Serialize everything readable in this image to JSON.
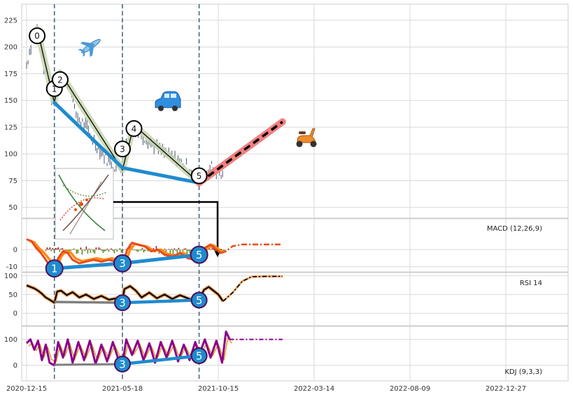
{
  "chart_data": {
    "type": "line",
    "x_ticks": [
      "2020-12-15",
      "2021-05-18",
      "2021-10-15",
      "2022-03-14",
      "2022-08-09",
      "2022-12-27"
    ],
    "price_panel": {
      "yticks": [
        50,
        75,
        100,
        125,
        150,
        175,
        200,
        225
      ],
      "ylim": [
        40,
        240
      ],
      "price_series": [
        {
          "t": 0.0,
          "v": 183
        },
        {
          "t": 0.03,
          "v": 196
        },
        {
          "t": 0.06,
          "v": 207
        },
        {
          "t": 0.09,
          "v": 213
        },
        {
          "t": 0.11,
          "v": 218
        },
        {
          "t": 0.14,
          "v": 200
        },
        {
          "t": 0.18,
          "v": 181
        },
        {
          "t": 0.22,
          "v": 163
        },
        {
          "t": 0.26,
          "v": 154
        },
        {
          "t": 0.29,
          "v": 150
        },
        {
          "t": 0.32,
          "v": 168
        },
        {
          "t": 0.35,
          "v": 177
        },
        {
          "t": 0.39,
          "v": 172
        },
        {
          "t": 0.43,
          "v": 166
        },
        {
          "t": 0.47,
          "v": 160
        },
        {
          "t": 0.5,
          "v": 140
        },
        {
          "t": 0.55,
          "v": 132
        },
        {
          "t": 0.6,
          "v": 128
        },
        {
          "t": 0.66,
          "v": 118
        },
        {
          "t": 0.72,
          "v": 110
        },
        {
          "t": 0.78,
          "v": 102
        },
        {
          "t": 0.84,
          "v": 95
        },
        {
          "t": 0.9,
          "v": 90
        },
        {
          "t": 0.95,
          "v": 86
        },
        {
          "t": 1.0,
          "v": 88
        },
        {
          "t": 1.04,
          "v": 110
        },
        {
          "t": 1.08,
          "v": 124
        },
        {
          "t": 1.12,
          "v": 126
        },
        {
          "t": 1.18,
          "v": 120
        },
        {
          "t": 1.25,
          "v": 114
        },
        {
          "t": 1.33,
          "v": 108
        },
        {
          "t": 1.42,
          "v": 102
        },
        {
          "t": 1.5,
          "v": 97
        },
        {
          "t": 1.58,
          "v": 94
        },
        {
          "t": 1.65,
          "v": 90
        },
        {
          "t": 1.72,
          "v": 84
        },
        {
          "t": 1.77,
          "v": 78
        },
        {
          "t": 1.8,
          "v": 74
        },
        {
          "t": 1.84,
          "v": 80
        },
        {
          "t": 1.88,
          "v": 85
        },
        {
          "t": 1.93,
          "v": 88
        },
        {
          "t": 1.98,
          "v": 84
        },
        {
          "t": 2.03,
          "v": 80
        },
        {
          "t": 2.06,
          "v": 78
        }
      ],
      "wave_points": [
        {
          "label": "0",
          "t": 0.11,
          "v": 217
        },
        {
          "label": "1",
          "t": 0.29,
          "v": 148
        },
        {
          "label": "2",
          "t": 0.35,
          "v": 176
        },
        {
          "label": "3",
          "t": 1.0,
          "v": 85
        },
        {
          "label": "4",
          "t": 1.12,
          "v": 127
        },
        {
          "label": "5",
          "t": 1.8,
          "v": 73
        }
      ],
      "trend_line": [
        {
          "t": 0.29,
          "v": 148
        },
        {
          "t": 1.0,
          "v": 87
        },
        {
          "t": 1.8,
          "v": 73
        }
      ],
      "forecast": [
        {
          "t": 1.8,
          "v": 73
        },
        {
          "t": 2.67,
          "v": 130
        }
      ],
      "vlines_t": [
        0.29,
        1.0,
        1.8
      ]
    },
    "macd_panel": {
      "label": "MACD (12,26,9)",
      "yticks": [
        -10,
        0
      ],
      "ylim": [
        -13,
        18
      ],
      "macd_series": [
        {
          "t": 0.0,
          "v": 6
        },
        {
          "t": 0.05,
          "v": 5
        },
        {
          "t": 0.1,
          "v": 1
        },
        {
          "t": 0.15,
          "v": -2
        },
        {
          "t": 0.2,
          "v": -6
        },
        {
          "t": 0.25,
          "v": -10
        },
        {
          "t": 0.29,
          "v": -12
        },
        {
          "t": 0.33,
          "v": -5
        },
        {
          "t": 0.38,
          "v": -1
        },
        {
          "t": 0.43,
          "v": -2
        },
        {
          "t": 0.48,
          "v": -6
        },
        {
          "t": 0.55,
          "v": -8
        },
        {
          "t": 0.62,
          "v": -7
        },
        {
          "t": 0.7,
          "v": -6
        },
        {
          "t": 0.78,
          "v": -7
        },
        {
          "t": 0.86,
          "v": -6
        },
        {
          "t": 0.93,
          "v": -7
        },
        {
          "t": 1.0,
          "v": -9
        },
        {
          "t": 1.05,
          "v": 0
        },
        {
          "t": 1.1,
          "v": 4
        },
        {
          "t": 1.16,
          "v": 3
        },
        {
          "t": 1.23,
          "v": 2
        },
        {
          "t": 1.3,
          "v": -1
        },
        {
          "t": 1.37,
          "v": 0
        },
        {
          "t": 1.44,
          "v": -3
        },
        {
          "t": 1.52,
          "v": -4
        },
        {
          "t": 1.6,
          "v": -2
        },
        {
          "t": 1.68,
          "v": -5
        },
        {
          "t": 1.75,
          "v": -6
        },
        {
          "t": 1.8,
          "v": -5
        },
        {
          "t": 1.86,
          "v": 1
        },
        {
          "t": 1.92,
          "v": 3
        },
        {
          "t": 1.98,
          "v": 0
        },
        {
          "t": 2.03,
          "v": -2
        },
        {
          "t": 2.08,
          "v": -1
        },
        {
          "t": 2.15,
          "v": 2
        },
        {
          "t": 2.25,
          "v": 3
        },
        {
          "t": 2.4,
          "v": 3
        },
        {
          "t": 2.67,
          "v": 3
        }
      ],
      "divergence": [
        {
          "label": "1",
          "t": 0.29,
          "v": -11
        },
        {
          "label": "3",
          "t": 1.0,
          "v": -8
        },
        {
          "label": "5",
          "t": 1.8,
          "v": -3
        }
      ]
    },
    "rsi_panel": {
      "label": "RSI 14",
      "yticks": [
        0,
        50,
        100
      ],
      "ylim": [
        -33,
        108
      ],
      "rsi_series": [
        {
          "t": 0.0,
          "v": 74
        },
        {
          "t": 0.04,
          "v": 70
        },
        {
          "t": 0.08,
          "v": 66
        },
        {
          "t": 0.12,
          "v": 60
        },
        {
          "t": 0.16,
          "v": 52
        },
        {
          "t": 0.2,
          "v": 42
        },
        {
          "t": 0.24,
          "v": 36
        },
        {
          "t": 0.29,
          "v": 28
        },
        {
          "t": 0.32,
          "v": 58
        },
        {
          "t": 0.36,
          "v": 60
        },
        {
          "t": 0.42,
          "v": 48
        },
        {
          "t": 0.48,
          "v": 56
        },
        {
          "t": 0.55,
          "v": 42
        },
        {
          "t": 0.62,
          "v": 50
        },
        {
          "t": 0.7,
          "v": 38
        },
        {
          "t": 0.78,
          "v": 46
        },
        {
          "t": 0.86,
          "v": 36
        },
        {
          "t": 0.94,
          "v": 40
        },
        {
          "t": 0.98,
          "v": 30
        },
        {
          "t": 1.0,
          "v": 32
        },
        {
          "t": 1.02,
          "v": 64
        },
        {
          "t": 1.08,
          "v": 72
        },
        {
          "t": 1.14,
          "v": 60
        },
        {
          "t": 1.2,
          "v": 42
        },
        {
          "t": 1.28,
          "v": 55
        },
        {
          "t": 1.36,
          "v": 40
        },
        {
          "t": 1.44,
          "v": 50
        },
        {
          "t": 1.52,
          "v": 38
        },
        {
          "t": 1.6,
          "v": 48
        },
        {
          "t": 1.68,
          "v": 40
        },
        {
          "t": 1.75,
          "v": 34
        },
        {
          "t": 1.8,
          "v": 36
        },
        {
          "t": 1.85,
          "v": 62
        },
        {
          "t": 1.9,
          "v": 70
        },
        {
          "t": 1.95,
          "v": 60
        },
        {
          "t": 2.0,
          "v": 50
        },
        {
          "t": 2.05,
          "v": 32
        },
        {
          "t": 2.15,
          "v": 55
        },
        {
          "t": 2.25,
          "v": 85
        },
        {
          "t": 2.35,
          "v": 97
        },
        {
          "t": 2.5,
          "v": 98
        },
        {
          "t": 2.67,
          "v": 98
        }
      ],
      "divergence": [
        {
          "label": "",
          "t": 0.29,
          "v": 30
        },
        {
          "label": "3",
          "t": 1.0,
          "v": 28
        },
        {
          "label": "5",
          "t": 1.8,
          "v": 35
        }
      ]
    },
    "kdj_panel": {
      "label": "KDJ (9,3,3)",
      "yticks": [
        0,
        100
      ],
      "ylim": [
        -60,
        150
      ],
      "kdj_series": [
        {
          "t": 0.0,
          "v": 85
        },
        {
          "t": 0.04,
          "v": 100
        },
        {
          "t": 0.08,
          "v": 60
        },
        {
          "t": 0.12,
          "v": 95
        },
        {
          "t": 0.16,
          "v": 20
        },
        {
          "t": 0.2,
          "v": 80
        },
        {
          "t": 0.24,
          "v": 10
        },
        {
          "t": 0.29,
          "v": 0
        },
        {
          "t": 0.33,
          "v": 90
        },
        {
          "t": 0.38,
          "v": 30
        },
        {
          "t": 0.43,
          "v": 100
        },
        {
          "t": 0.48,
          "v": 10
        },
        {
          "t": 0.54,
          "v": 90
        },
        {
          "t": 0.6,
          "v": 20
        },
        {
          "t": 0.66,
          "v": 95
        },
        {
          "t": 0.72,
          "v": 5
        },
        {
          "t": 0.78,
          "v": 80
        },
        {
          "t": 0.84,
          "v": 15
        },
        {
          "t": 0.9,
          "v": 90
        },
        {
          "t": 0.96,
          "v": 20
        },
        {
          "t": 1.0,
          "v": 5
        },
        {
          "t": 1.04,
          "v": 100
        },
        {
          "t": 1.1,
          "v": 40
        },
        {
          "t": 1.16,
          "v": 95
        },
        {
          "t": 1.22,
          "v": 20
        },
        {
          "t": 1.28,
          "v": 85
        },
        {
          "t": 1.34,
          "v": 10
        },
        {
          "t": 1.4,
          "v": 90
        },
        {
          "t": 1.46,
          "v": 30
        },
        {
          "t": 1.52,
          "v": 95
        },
        {
          "t": 1.58,
          "v": 15
        },
        {
          "t": 1.64,
          "v": 80
        },
        {
          "t": 1.7,
          "v": 20
        },
        {
          "t": 1.76,
          "v": 90
        },
        {
          "t": 1.8,
          "v": 40
        },
        {
          "t": 1.86,
          "v": 100
        },
        {
          "t": 1.92,
          "v": 30
        },
        {
          "t": 1.98,
          "v": 95
        },
        {
          "t": 2.04,
          "v": 10
        },
        {
          "t": 2.08,
          "v": 130
        },
        {
          "t": 2.12,
          "v": 100
        },
        {
          "t": 2.4,
          "v": 100
        },
        {
          "t": 2.67,
          "v": 100
        }
      ],
      "divergence": [
        {
          "label": "",
          "t": 0.29,
          "v": 2
        },
        {
          "label": "3",
          "t": 1.0,
          "v": 5
        },
        {
          "label": "5",
          "t": 1.8,
          "v": 37
        }
      ]
    }
  },
  "colors": {
    "grid": "#d9d9d9",
    "price": "#4a5770",
    "wave_band": "#c8d6b0",
    "trend": "#1f8bcf",
    "forecast_band": "#f08080",
    "vline": "#4a6688",
    "macd": "#e84c1c",
    "signal": "#ff8c1a",
    "hist_pos": "#a32020",
    "hist_neg": "#5e8a1a",
    "rsi": "#000000",
    "rsi_halo": "#f4a460",
    "kdj_k": "#8b008b",
    "kdj_d": "#e0a030",
    "grey_line": "#808080"
  },
  "icons": [
    "airplane-icon",
    "car-icon",
    "scooter-icon",
    "inset-plot-thumbnail"
  ]
}
